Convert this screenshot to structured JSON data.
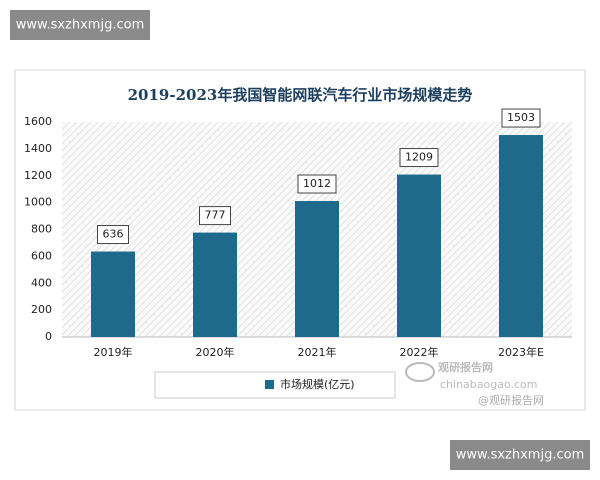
{
  "watermarks": {
    "site_top": "www.sxzhxmjg.com",
    "site_bottom": "www.sxzhxmjg.com",
    "brand": "观研报告网",
    "domain": "chinabaogao.com",
    "credit": "@观研报告网"
  },
  "chart_data": {
    "type": "bar",
    "title": "2019-2023年我国智能网联汽车行业市场规模走势",
    "categories": [
      "2019年",
      "2020年",
      "2021年",
      "2022年",
      "2023年E"
    ],
    "series": [
      {
        "name": "市场规模(亿元)",
        "color": "#1d6a8c",
        "values": [
          636,
          777,
          1012,
          1209,
          1503
        ]
      }
    ],
    "ylim": [
      0,
      1600
    ],
    "yticks": [
      0,
      200,
      400,
      600,
      800,
      1000,
      1200,
      1400,
      1600
    ],
    "grid": false,
    "legend": "bottom"
  }
}
